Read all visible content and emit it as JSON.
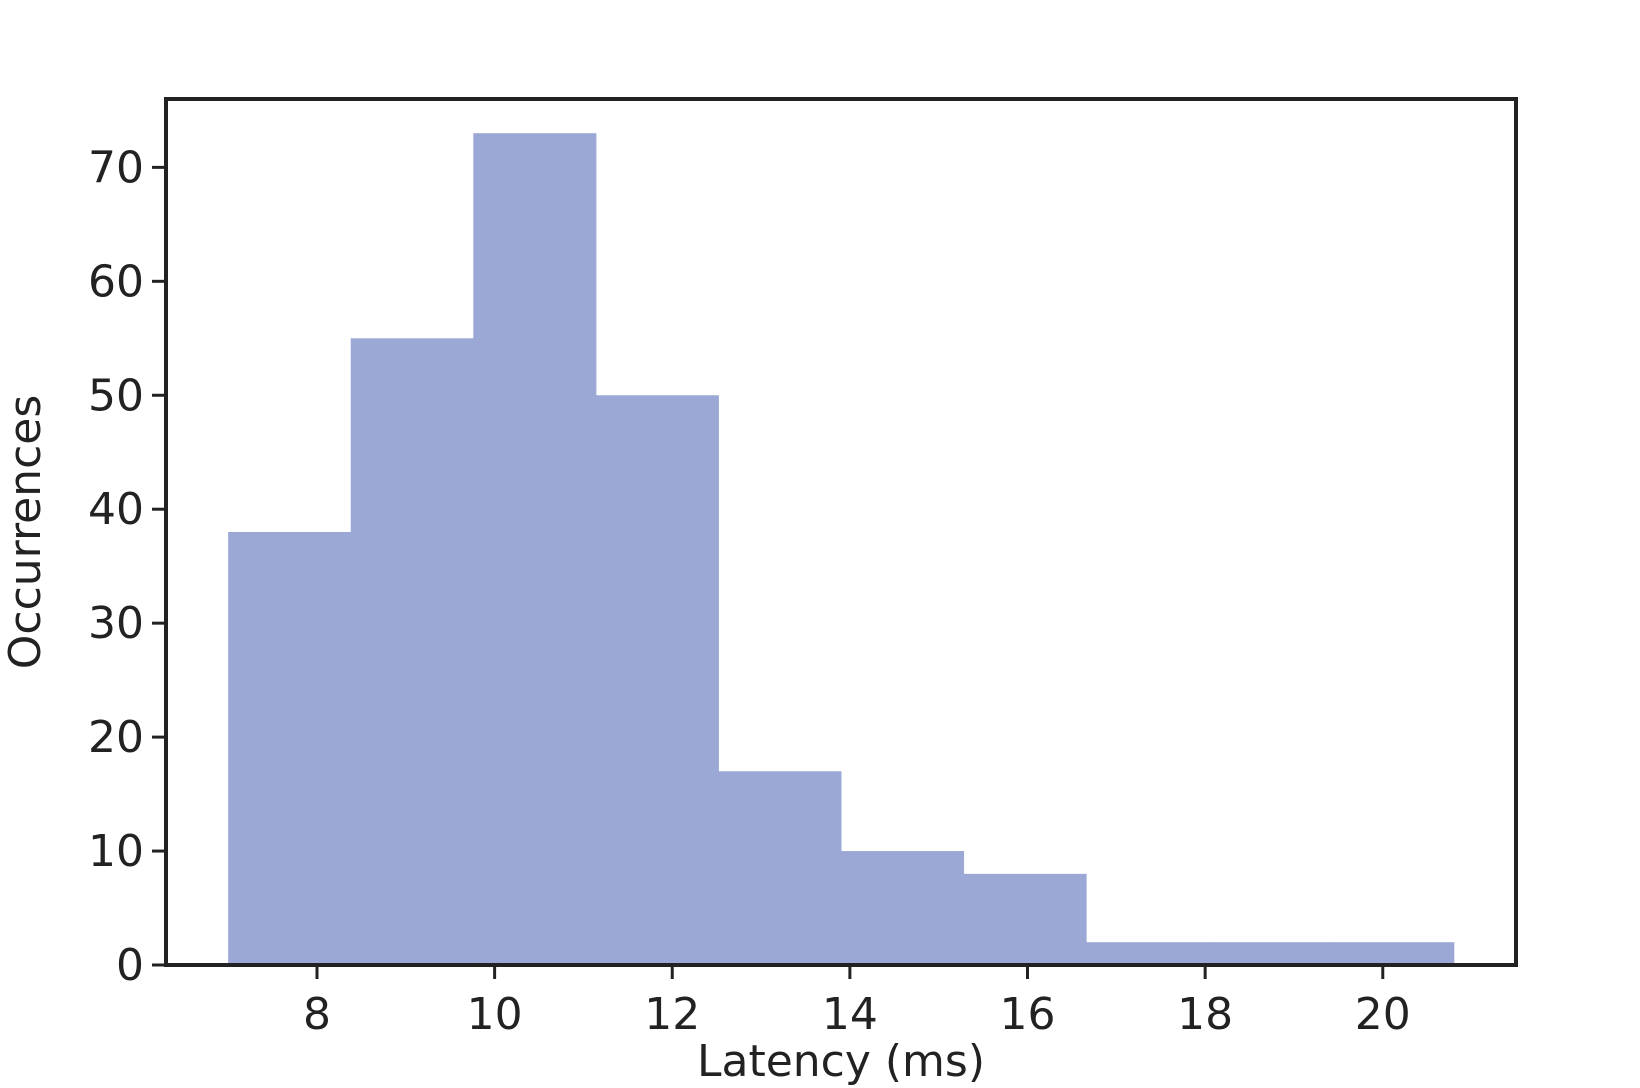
{
  "chart_data": {
    "type": "bar",
    "subtype": "histogram",
    "bin_edges": [
      7.0,
      8.38,
      9.76,
      11.14,
      12.52,
      13.9,
      15.28,
      16.66,
      18.04,
      19.42,
      20.8
    ],
    "values": [
      38,
      55,
      73,
      50,
      17,
      10,
      8,
      2,
      2,
      2
    ],
    "xlabel": "Latency (ms)",
    "ylabel": "Occurrences",
    "xlim": [
      6.3,
      21.5
    ],
    "ylim": [
      0,
      76
    ],
    "xticks": [
      8,
      10,
      12,
      14,
      16,
      18,
      20
    ],
    "yticks": [
      0,
      10,
      20,
      30,
      40,
      50,
      60,
      70
    ],
    "grid": false,
    "legend": "none",
    "bar_color": "#9ba8d5",
    "axis_color": "#222222"
  }
}
